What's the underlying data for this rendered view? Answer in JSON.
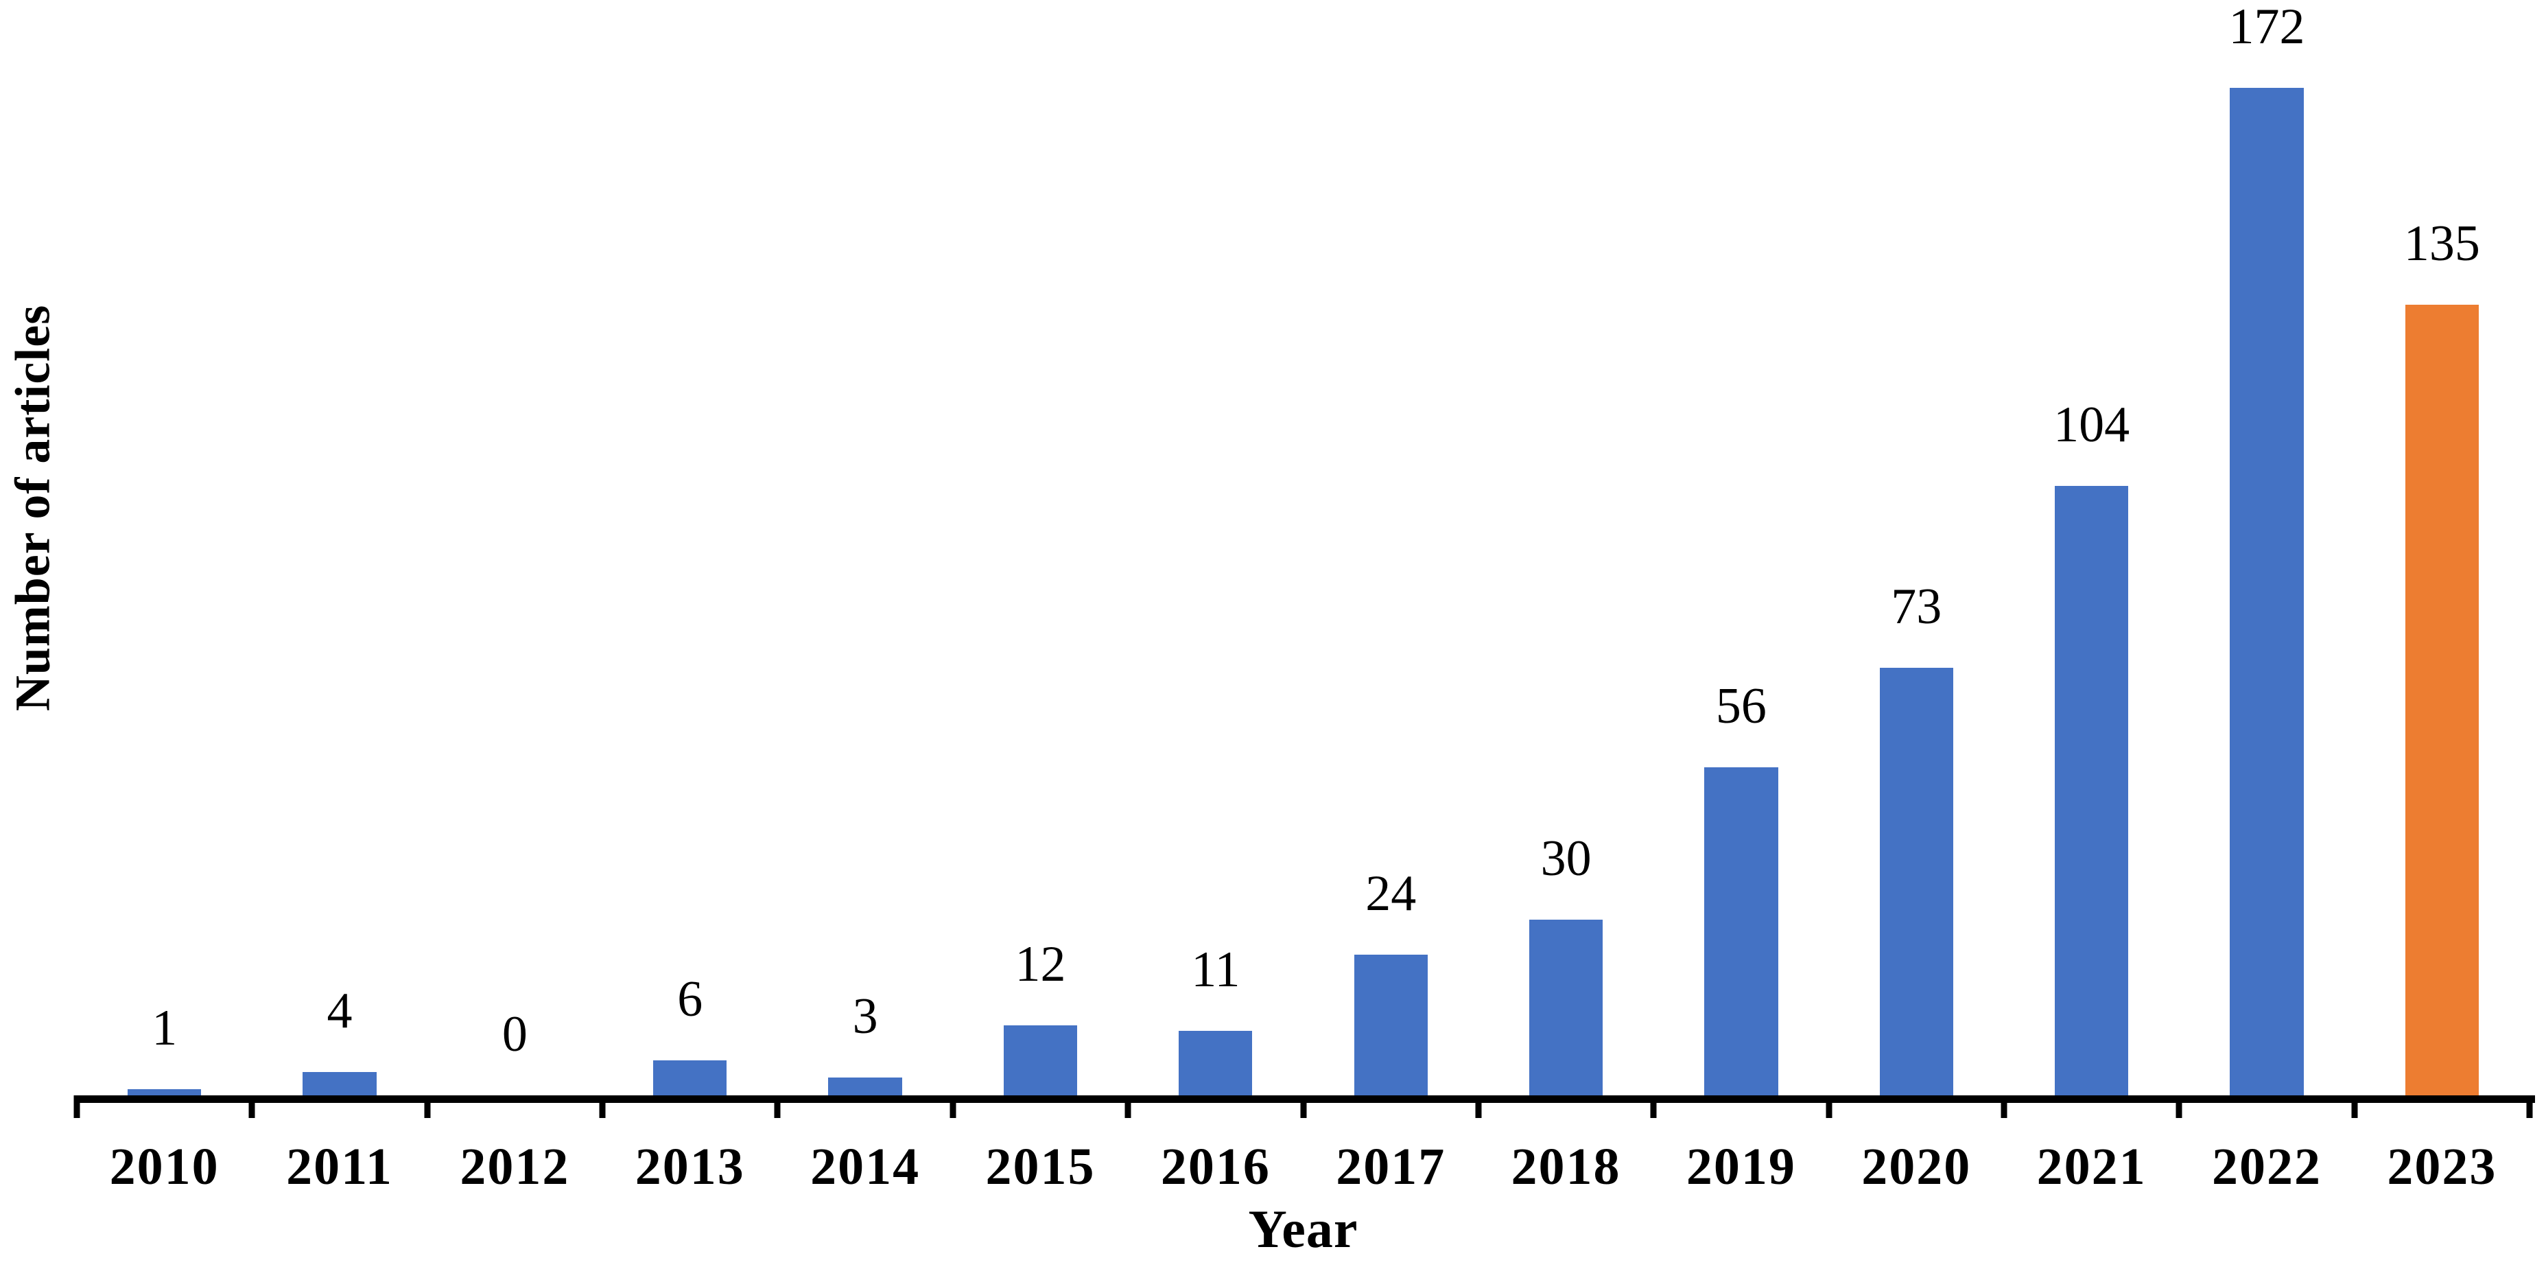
{
  "chart_data": {
    "type": "bar",
    "categories": [
      "2010",
      "2011",
      "2012",
      "2013",
      "2014",
      "2015",
      "2016",
      "2017",
      "2018",
      "2019",
      "2020",
      "2021",
      "2022",
      "2023"
    ],
    "values": [
      1,
      4,
      0,
      6,
      3,
      12,
      11,
      24,
      30,
      56,
      73,
      104,
      172,
      135
    ],
    "data_labels": [
      "1",
      "4",
      "0",
      "6",
      "3",
      "12",
      "11",
      "24",
      "30",
      "56",
      "73",
      "104",
      "172",
      "135"
    ],
    "title": "",
    "xlabel": "Year",
    "ylabel": "Number of articles",
    "ylim": [
      0,
      172
    ],
    "grid": false,
    "legend": false,
    "y_axis_ticks_visible": false,
    "bar_color_default": "#4472C4",
    "bar_color_highlight": "#ED7D31",
    "highlight_index": 13,
    "axis_color": "#000000",
    "label_color": "#000000"
  }
}
